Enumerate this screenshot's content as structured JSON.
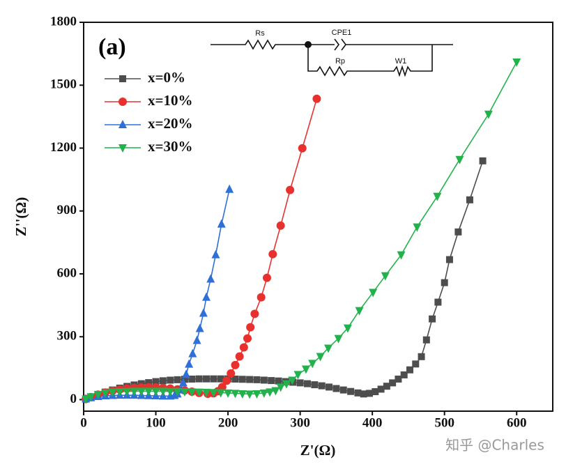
{
  "chart_data": {
    "type": "line",
    "x_label": "Z'(Ω)",
    "y_label": "Z''(Ω)",
    "annotations": {
      "panel": "(a)",
      "circuit": [
        "Rs",
        "CPE1",
        "Rp",
        "W1"
      ],
      "watermark": "知乎 @Charles"
    },
    "xlim": [
      0,
      650
    ],
    "ylim": [
      -55,
      1800
    ],
    "xticks": [
      0,
      100,
      200,
      300,
      400,
      500,
      600
    ],
    "yticks": [
      0,
      300,
      600,
      900,
      1200,
      1500,
      1800
    ],
    "series": [
      {
        "name": "x=0%",
        "color": "#4d4d4d",
        "marker": "square",
        "x": [
          3,
          10,
          20,
          30,
          40,
          50,
          60,
          70,
          80,
          90,
          100,
          110,
          120,
          130,
          140,
          150,
          160,
          170,
          180,
          190,
          200,
          210,
          220,
          230,
          240,
          250,
          260,
          270,
          280,
          290,
          300,
          310,
          320,
          330,
          340,
          350,
          360,
          370,
          380,
          388,
          396,
          404,
          412,
          420,
          428,
          436,
          444,
          452,
          460,
          468,
          475,
          483,
          491,
          500,
          507,
          519,
          535,
          553
        ],
        "values": [
          3,
          12,
          24,
          36,
          46,
          55,
          63,
          70,
          76,
          81,
          86,
          90,
          93,
          95,
          97,
          98,
          99,
          99,
          99,
          99,
          99,
          98,
          97,
          96,
          95,
          93,
          91,
          89,
          86,
          83,
          80,
          76,
          71,
          66,
          60,
          53,
          46,
          39,
          32,
          27,
          30,
          38,
          50,
          64,
          80,
          98,
          118,
          142,
          170,
          205,
          285,
          385,
          465,
          558,
          668,
          800,
          953,
          1139
        ]
      },
      {
        "name": "x=10%",
        "color": "#e8312f",
        "marker": "circle",
        "x": [
          3,
          10,
          20,
          30,
          40,
          50,
          60,
          70,
          80,
          90,
          100,
          110,
          120,
          130,
          140,
          150,
          160,
          172,
          180,
          186,
          192,
          198,
          204,
          210,
          216,
          222,
          227,
          231,
          237,
          246,
          254,
          262,
          273,
          286,
          303,
          323
        ],
        "values": [
          3,
          12,
          24,
          34,
          42,
          48,
          53,
          56,
          58,
          59,
          58,
          56,
          53,
          49,
          44,
          38,
          32,
          28,
          30,
          40,
          60,
          90,
          125,
          165,
          206,
          249,
          292,
          345,
          409,
          488,
          581,
          694,
          830,
          1000,
          1199,
          1435
        ]
      },
      {
        "name": "x=20%",
        "color": "#2f6fd8",
        "marker": "triangle-up",
        "x": [
          3,
          10,
          20,
          30,
          40,
          50,
          60,
          70,
          80,
          90,
          100,
          110,
          120,
          126,
          130,
          134,
          138,
          142,
          146,
          151,
          157,
          161,
          166,
          170,
          176,
          183,
          191,
          202
        ],
        "values": [
          3,
          9,
          15,
          18,
          20,
          21,
          21,
          21,
          20,
          19,
          18,
          17,
          17,
          20,
          27,
          46,
          80,
          120,
          169,
          219,
          282,
          339,
          412,
          488,
          575,
          691,
          837,
          1003
        ]
      },
      {
        "name": "x=30%",
        "color": "#22b24c",
        "marker": "triangle-down",
        "x": [
          3,
          10,
          20,
          30,
          40,
          50,
          60,
          70,
          80,
          90,
          100,
          110,
          120,
          130,
          140,
          150,
          160,
          170,
          180,
          190,
          200,
          210,
          220,
          230,
          240,
          250,
          258,
          266,
          273,
          281,
          289,
          297,
          308,
          317,
          328,
          339,
          353,
          366,
          382,
          401,
          418,
          440,
          462,
          490,
          521,
          561,
          600
        ],
        "values": [
          3,
          14,
          25,
          32,
          36,
          38,
          39,
          40,
          40,
          40,
          40,
          40,
          39,
          39,
          38,
          37,
          36,
          35,
          34,
          33,
          32,
          30,
          28,
          27,
          28,
          32,
          37,
          43,
          60,
          76,
          93,
          120,
          146,
          173,
          206,
          246,
          292,
          342,
          425,
          512,
          591,
          691,
          824,
          970,
          1146,
          1362,
          1611
        ]
      }
    ]
  }
}
